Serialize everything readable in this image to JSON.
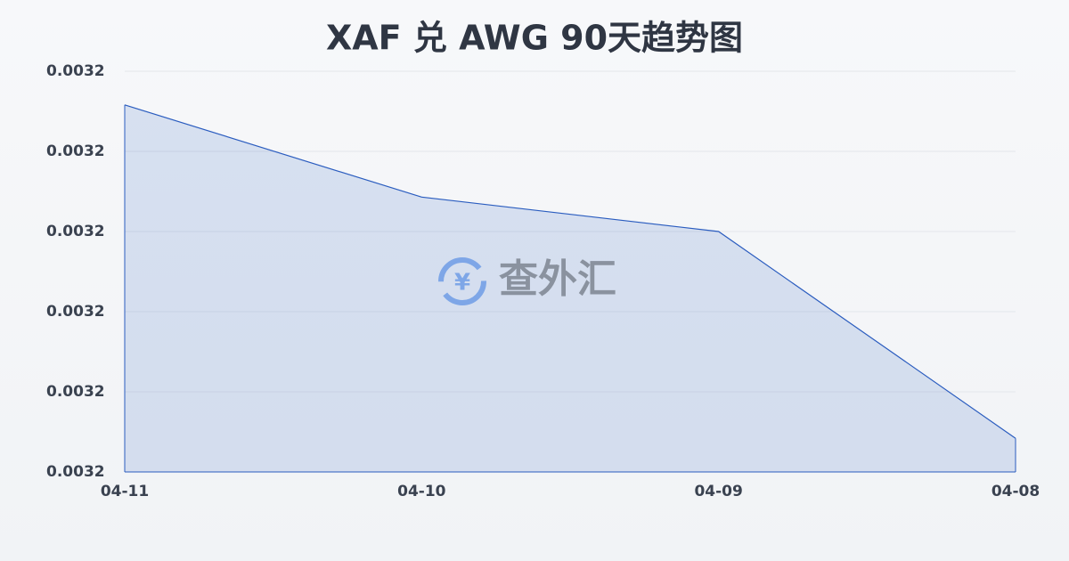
{
  "chart_data": {
    "type": "area",
    "title": "XAF 兑 AWG 90天趋势图",
    "watermark": "查外汇",
    "categories": [
      "04-11",
      "04-10",
      "04-09",
      "04-08"
    ],
    "series": [
      {
        "name": "XAF/AWG",
        "color": "#2a5cbf",
        "values": [
          0.0032058,
          0.0031943,
          0.00319,
          0.0031642
        ]
      }
    ],
    "ylim": [
      0.00316,
      0.00321
    ],
    "yticks": [
      {
        "value": 0.00316,
        "label": "0.0032"
      },
      {
        "value": 0.00317,
        "label": "0.0032"
      },
      {
        "value": 0.00318,
        "label": "0.0032"
      },
      {
        "value": 0.00319,
        "label": "0.0032"
      },
      {
        "value": 0.0032,
        "label": "0.0032"
      },
      {
        "value": 0.00321,
        "label": "0.0032"
      }
    ],
    "grid": true
  }
}
